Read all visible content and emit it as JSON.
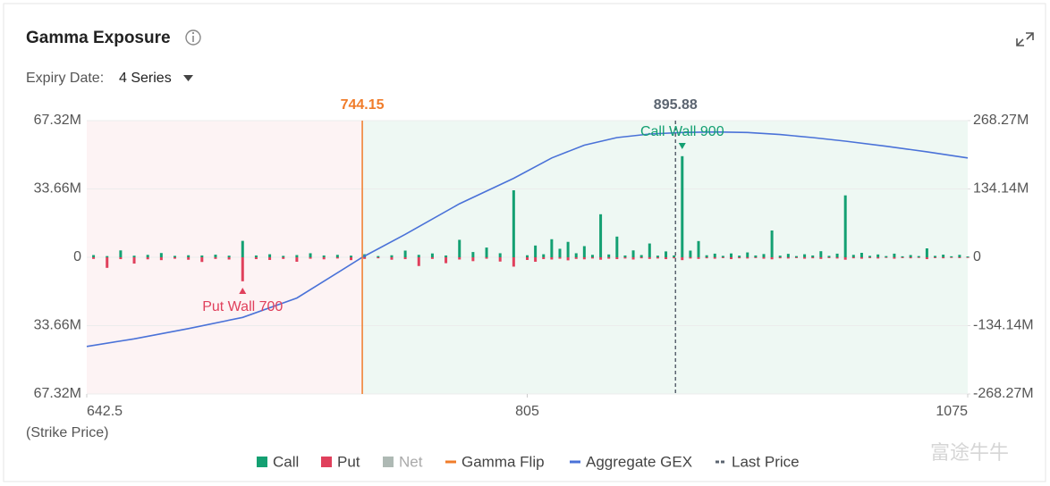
{
  "chart_data": {
    "type": "bar",
    "title": "Gamma Exposure",
    "expiry_label": "Expiry Date:",
    "expiry_value": "4 Series",
    "xlabel": "(Strike Price)",
    "watermark": "富途牛牛",
    "grid": true,
    "xlim": [
      642.5,
      1075
    ],
    "xticks": [
      642.5,
      805,
      1075
    ],
    "ylim": [
      -67320000,
      67320000
    ],
    "yticks": [
      {
        "value": 67320000,
        "label": "67.32M"
      },
      {
        "value": 33660000,
        "label": "33.66M"
      },
      0,
      {
        "value": -33660000,
        "label": "33.66M"
      },
      {
        "value": -67320000,
        "label": "67.32M"
      }
    ],
    "y2lim": [
      -268270000,
      268270000
    ],
    "y2ticks": [
      {
        "value": 268270000,
        "label": "268.27M"
      },
      {
        "value": 134140000,
        "label": "134.14M"
      },
      0,
      {
        "value": -134140000,
        "label": "-134.14M"
      },
      {
        "value": -268270000,
        "label": "-268.27M"
      }
    ],
    "x": [
      645,
      650,
      655,
      660,
      665,
      670,
      675,
      680,
      685,
      690,
      695,
      700,
      705,
      710,
      715,
      720,
      725,
      730,
      735,
      740,
      745,
      750,
      755,
      760,
      765,
      770,
      775,
      780,
      785,
      790,
      795,
      800,
      805,
      810,
      815,
      820,
      825,
      830,
      835,
      840,
      845,
      850,
      855,
      860,
      865,
      870,
      875,
      880,
      885,
      890,
      895,
      900,
      905,
      910,
      915,
      920,
      925,
      930,
      935,
      940,
      945,
      950,
      955,
      960,
      965,
      970,
      975,
      980,
      985,
      990,
      995,
      1000,
      1005,
      1010,
      1015,
      1020,
      1025,
      1030,
      1035,
      1040,
      1045,
      1050,
      1055,
      1060,
      1065,
      1070,
      1075
    ],
    "series": [
      {
        "name": "Call",
        "color": "#14a072",
        "visible": true,
        "values": [
          1100000,
          600000,
          3400000,
          800000,
          1200000,
          2100000,
          700000,
          1000000,
          900000,
          1300000,
          800000,
          8100000,
          900000,
          1500000,
          700000,
          1100000,
          2000000,
          900000,
          1200000,
          800000,
          1500000,
          600000,
          1000000,
          3300000,
          1200000,
          1900000,
          900000,
          8600000,
          2600000,
          4800000,
          2000000,
          33000000,
          1000000,
          5800000,
          1500000,
          8900000,
          4200000,
          7600000,
          2000000,
          5500000,
          1200000,
          21200000,
          1400000,
          10200000,
          900000,
          3400000,
          1100000,
          6800000,
          800000,
          2900000,
          900000,
          49800000,
          3300000,
          8000000,
          1000000,
          1800000,
          700000,
          1900000,
          800000,
          2400000,
          900000,
          1600000,
          13200000,
          800000,
          1700000,
          600000,
          1500000,
          900000,
          3000000,
          700000,
          1800000,
          30500000,
          1200000,
          2200000,
          700000,
          1400000,
          600000,
          1800000,
          500000,
          1100000,
          600000,
          4400000,
          700000,
          1300000,
          500000,
          1200000,
          400000
        ]
      },
      {
        "name": "Put",
        "color": "#e0405c",
        "visible": true,
        "values": [
          -800000,
          -5200000,
          -900000,
          -3100000,
          -1000000,
          -1400000,
          -700000,
          -1200000,
          -2300000,
          -800000,
          -1100000,
          -11800000,
          -900000,
          -1300000,
          -800000,
          -2200000,
          -700000,
          -1000000,
          -600000,
          -1400000,
          -800000,
          -500000,
          -1200000,
          -900000,
          -4300000,
          -800000,
          -2900000,
          -1100000,
          -1900000,
          -700000,
          -2100000,
          -4600000,
          -1300000,
          -2200000,
          -900000,
          -1100000,
          -700000,
          -1500000,
          -800000,
          -1000000,
          -600000,
          -1200000,
          -700000,
          -900000,
          -600000,
          -1100000,
          -500000,
          -800000,
          -600000,
          -900000,
          -500000,
          -1400000,
          -600000,
          -800000,
          -500000,
          -700000,
          -400000,
          -900000,
          -500000,
          -600000,
          -400000,
          -700000,
          -1000000,
          -500000,
          -600000,
          -400000,
          -700000,
          -500000,
          -800000,
          -400000,
          -600000,
          -1200000,
          -500000,
          -700000,
          -400000,
          -600000,
          -300000,
          -700000,
          -400000,
          -500000,
          -300000,
          -900000,
          -400000,
          -500000,
          -300000,
          -400000,
          -300000
        ]
      },
      {
        "name": "Net",
        "color": "#9aa8a1",
        "visible": false
      },
      {
        "name": "Aggregate GEX",
        "type": "line",
        "axis": "y2",
        "color": "#4a72d8",
        "x": [
          642.5,
          660,
          680,
          700,
          720,
          744.15,
          760,
          780,
          800,
          820,
          840,
          860,
          880,
          900,
          920,
          940,
          960,
          980,
          1000,
          1025,
          1050,
          1075
        ],
        "values": [
          -175000000,
          -160000000,
          -140000000,
          -118000000,
          -80000000,
          0,
          45000000,
          105000000,
          155000000,
          195000000,
          220000000,
          235000000,
          242000000,
          245000000,
          246000000,
          245000000,
          241000000,
          235000000,
          228000000,
          218000000,
          207000000,
          195000000
        ]
      }
    ],
    "gamma_flip": {
      "name": "Gamma Flip",
      "color": "#f07c2a",
      "value": 744.15
    },
    "last_price": {
      "name": "Last Price",
      "color": "#5b6470",
      "value": 895.88
    },
    "call_wall": {
      "label": "Call Wall 900",
      "x": 900,
      "color": "#14a072"
    },
    "put_wall": {
      "label": "Put Wall 700",
      "x": 700,
      "color": "#e0405c"
    }
  }
}
